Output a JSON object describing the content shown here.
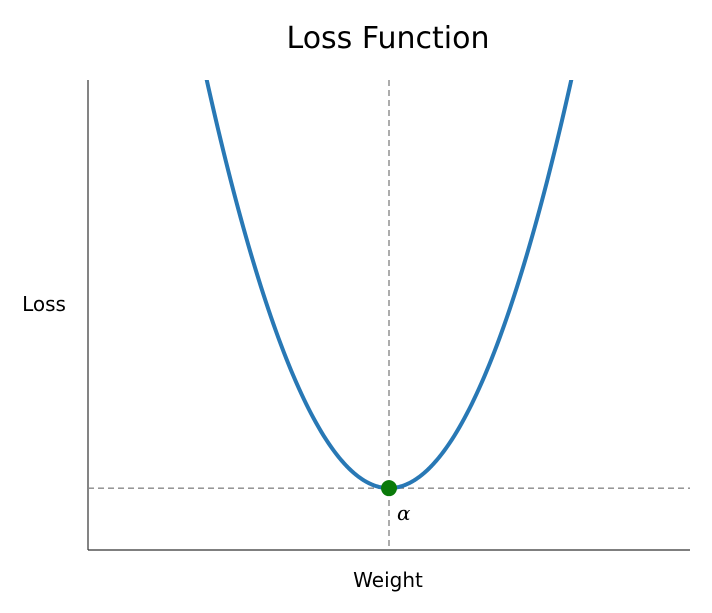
{
  "chart_data": {
    "type": "line",
    "title": "Loss Function",
    "xlabel": "Weight",
    "ylabel": "Loss",
    "xlim": [
      -3,
      3
    ],
    "ylim": [
      -0.5,
      3.3
    ],
    "grid": false,
    "legend": "none",
    "series": [
      {
        "function": "x^2",
        "x_range": [
          -3,
          3
        ],
        "color": "#2878b5"
      }
    ],
    "minimum_point": {
      "x": 0,
      "y": 0,
      "color": "#0a7a0a"
    },
    "reference_lines": [
      {
        "orientation": "vertical",
        "x": 0,
        "style": "dashed",
        "color": "#888888"
      },
      {
        "orientation": "horizontal",
        "y": 0,
        "style": "dashed",
        "color": "#888888"
      }
    ],
    "annotations": [
      {
        "text": "α",
        "x": 0,
        "y": 0
      }
    ],
    "ticks_shown": false
  }
}
